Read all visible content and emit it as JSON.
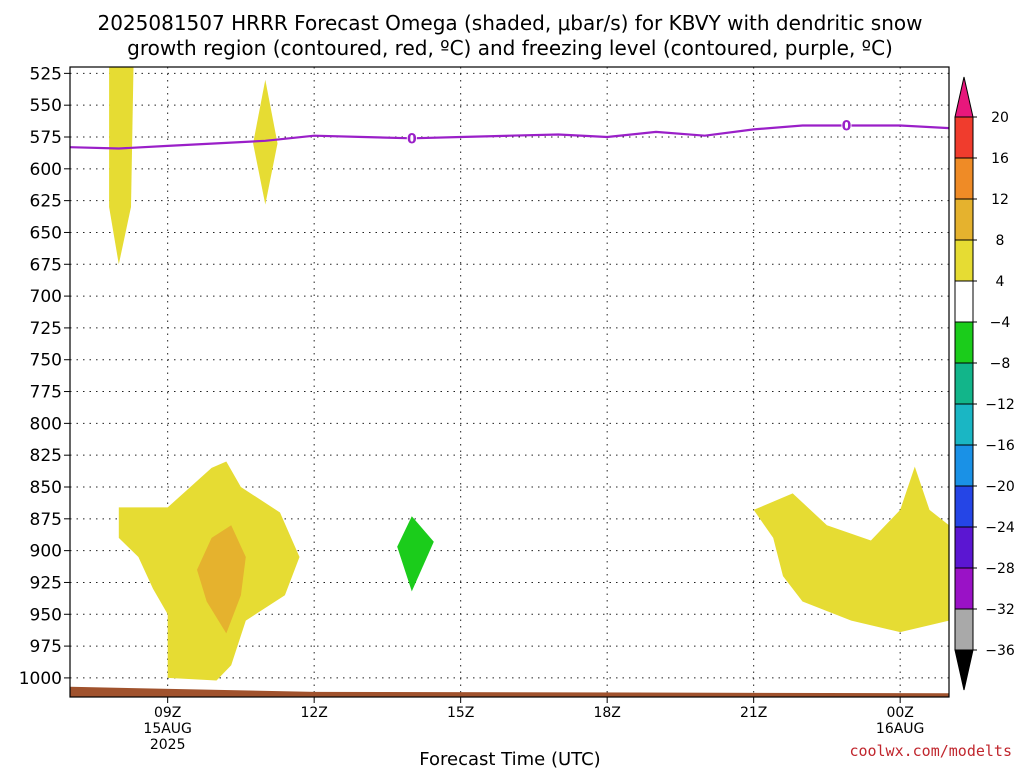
{
  "title_line1": "2025081507 HRRR Forecast Omega (shaded, μbar/s) for KBVY with dendritic snow",
  "title_line2": "growth region (contoured, red, ºC) and freezing level (contoured, purple, ºC)",
  "credit": "coolwx.com/modelts",
  "colors": {
    "freezing_level": "#9a1fc8",
    "ground": "#a0522d",
    "grid": "#222222"
  },
  "chart_data": {
    "type": "time-height cross section",
    "title": "2025081507 HRRR Forecast Omega (shaded, μbar/s) for KBVY with dendritic snow growth region (contoured, red, ºC) and freezing level (contoured, purple, ºC)",
    "xlabel": "Forecast Time (UTC)",
    "ylabel": "",
    "y_axis": {
      "unit": "hPa",
      "inverted": true,
      "range": [
        520,
        1015
      ],
      "ticks": [
        525,
        550,
        575,
        600,
        625,
        650,
        675,
        700,
        725,
        750,
        775,
        800,
        825,
        850,
        875,
        900,
        925,
        950,
        975,
        1000
      ]
    },
    "x_axis": {
      "range_hours": [
        7.0,
        25.0
      ],
      "ticks": [
        {
          "hour": 9,
          "lines": [
            "09Z",
            "15AUG",
            "2025"
          ]
        },
        {
          "hour": 12,
          "lines": [
            "12Z"
          ]
        },
        {
          "hour": 15,
          "lines": [
            "15Z"
          ]
        },
        {
          "hour": 18,
          "lines": [
            "18Z"
          ]
        },
        {
          "hour": 21,
          "lines": [
            "21Z"
          ]
        },
        {
          "hour": 24,
          "lines": [
            "00Z",
            "16AUG"
          ]
        }
      ]
    },
    "grid": true,
    "colorbar": {
      "labels": [
        "20",
        "16",
        "12",
        "8",
        "4",
        "−4",
        "−8",
        "−12",
        "−16",
        "−20",
        "−24",
        "−28",
        "−32",
        "−36"
      ],
      "colors": [
        "#e8177c",
        "#f03c2d",
        "#ef8b26",
        "#e5b22e",
        "#e6dc33",
        "#ffffff",
        "#1bcc1b",
        "#12b58a",
        "#1ab6c4",
        "#1a91e6",
        "#2545e6",
        "#5b16d2",
        "#9a12c6",
        "#a9a9a9",
        "#000000"
      ]
    },
    "freezing_level": {
      "label": "0",
      "points": [
        [
          7.0,
          583
        ],
        [
          8.0,
          584
        ],
        [
          9.0,
          582
        ],
        [
          10.0,
          580
        ],
        [
          11.0,
          578
        ],
        [
          12.0,
          574
        ],
        [
          13.0,
          575
        ],
        [
          14.0,
          576
        ],
        [
          15.0,
          575
        ],
        [
          16.0,
          574
        ],
        [
          17.0,
          573
        ],
        [
          18.0,
          575
        ],
        [
          19.0,
          571
        ],
        [
          20.0,
          574
        ],
        [
          21.0,
          569
        ],
        [
          22.0,
          566
        ],
        [
          23.0,
          566
        ],
        [
          24.0,
          566
        ],
        [
          25.0,
          568
        ]
      ],
      "label_hours": [
        14.0,
        22.9
      ]
    },
    "omega_regions": [
      {
        "level": "4 to 8",
        "color": "#e6dc33",
        "points": [
          [
            7.8,
            520
          ],
          [
            8.3,
            520
          ],
          [
            8.25,
            630
          ],
          [
            8.0,
            675
          ],
          [
            7.8,
            630
          ]
        ]
      },
      {
        "level": "4 to 8",
        "color": "#e6dc33",
        "points": [
          [
            11.0,
            530
          ],
          [
            11.25,
            580
          ],
          [
            11.0,
            628
          ],
          [
            10.75,
            580
          ]
        ]
      },
      {
        "level": "4 to 8",
        "color": "#e6dc33",
        "points": [
          [
            8.0,
            866
          ],
          [
            9.0,
            866
          ],
          [
            9.9,
            835
          ],
          [
            10.2,
            830
          ],
          [
            10.5,
            850
          ],
          [
            11.3,
            870
          ],
          [
            11.7,
            905
          ],
          [
            11.4,
            935
          ],
          [
            10.6,
            955
          ],
          [
            10.3,
            990
          ],
          [
            10.0,
            1002
          ],
          [
            9.0,
            1000
          ],
          [
            9.0,
            950
          ],
          [
            8.7,
            930
          ],
          [
            8.4,
            905
          ],
          [
            8.0,
            890
          ]
        ]
      },
      {
        "level": "8 to 12",
        "color": "#e5b22e",
        "points": [
          [
            9.9,
            890
          ],
          [
            10.3,
            880
          ],
          [
            10.6,
            905
          ],
          [
            10.5,
            935
          ],
          [
            10.2,
            965
          ],
          [
            9.8,
            940
          ],
          [
            9.6,
            915
          ]
        ]
      },
      {
        "level": "−4 to −8",
        "color": "#1bcc1b",
        "points": [
          [
            14.0,
            873
          ],
          [
            14.45,
            893
          ],
          [
            14.0,
            932
          ],
          [
            13.7,
            897
          ]
        ]
      },
      {
        "level": "4 to 8",
        "color": "#e6dc33",
        "points": [
          [
            21.0,
            868
          ],
          [
            21.8,
            855
          ],
          [
            22.5,
            880
          ],
          [
            23.4,
            892
          ],
          [
            24.0,
            868
          ],
          [
            24.3,
            834
          ],
          [
            24.6,
            868
          ],
          [
            25.0,
            880
          ],
          [
            25.0,
            955
          ],
          [
            24.0,
            964
          ],
          [
            23.0,
            955
          ],
          [
            22.0,
            940
          ],
          [
            21.6,
            920
          ],
          [
            21.4,
            890
          ]
        ]
      }
    ],
    "ground": {
      "points": [
        [
          7.0,
          1007
        ],
        [
          12.0,
          1011
        ],
        [
          25.0,
          1012
        ]
      ]
    }
  }
}
